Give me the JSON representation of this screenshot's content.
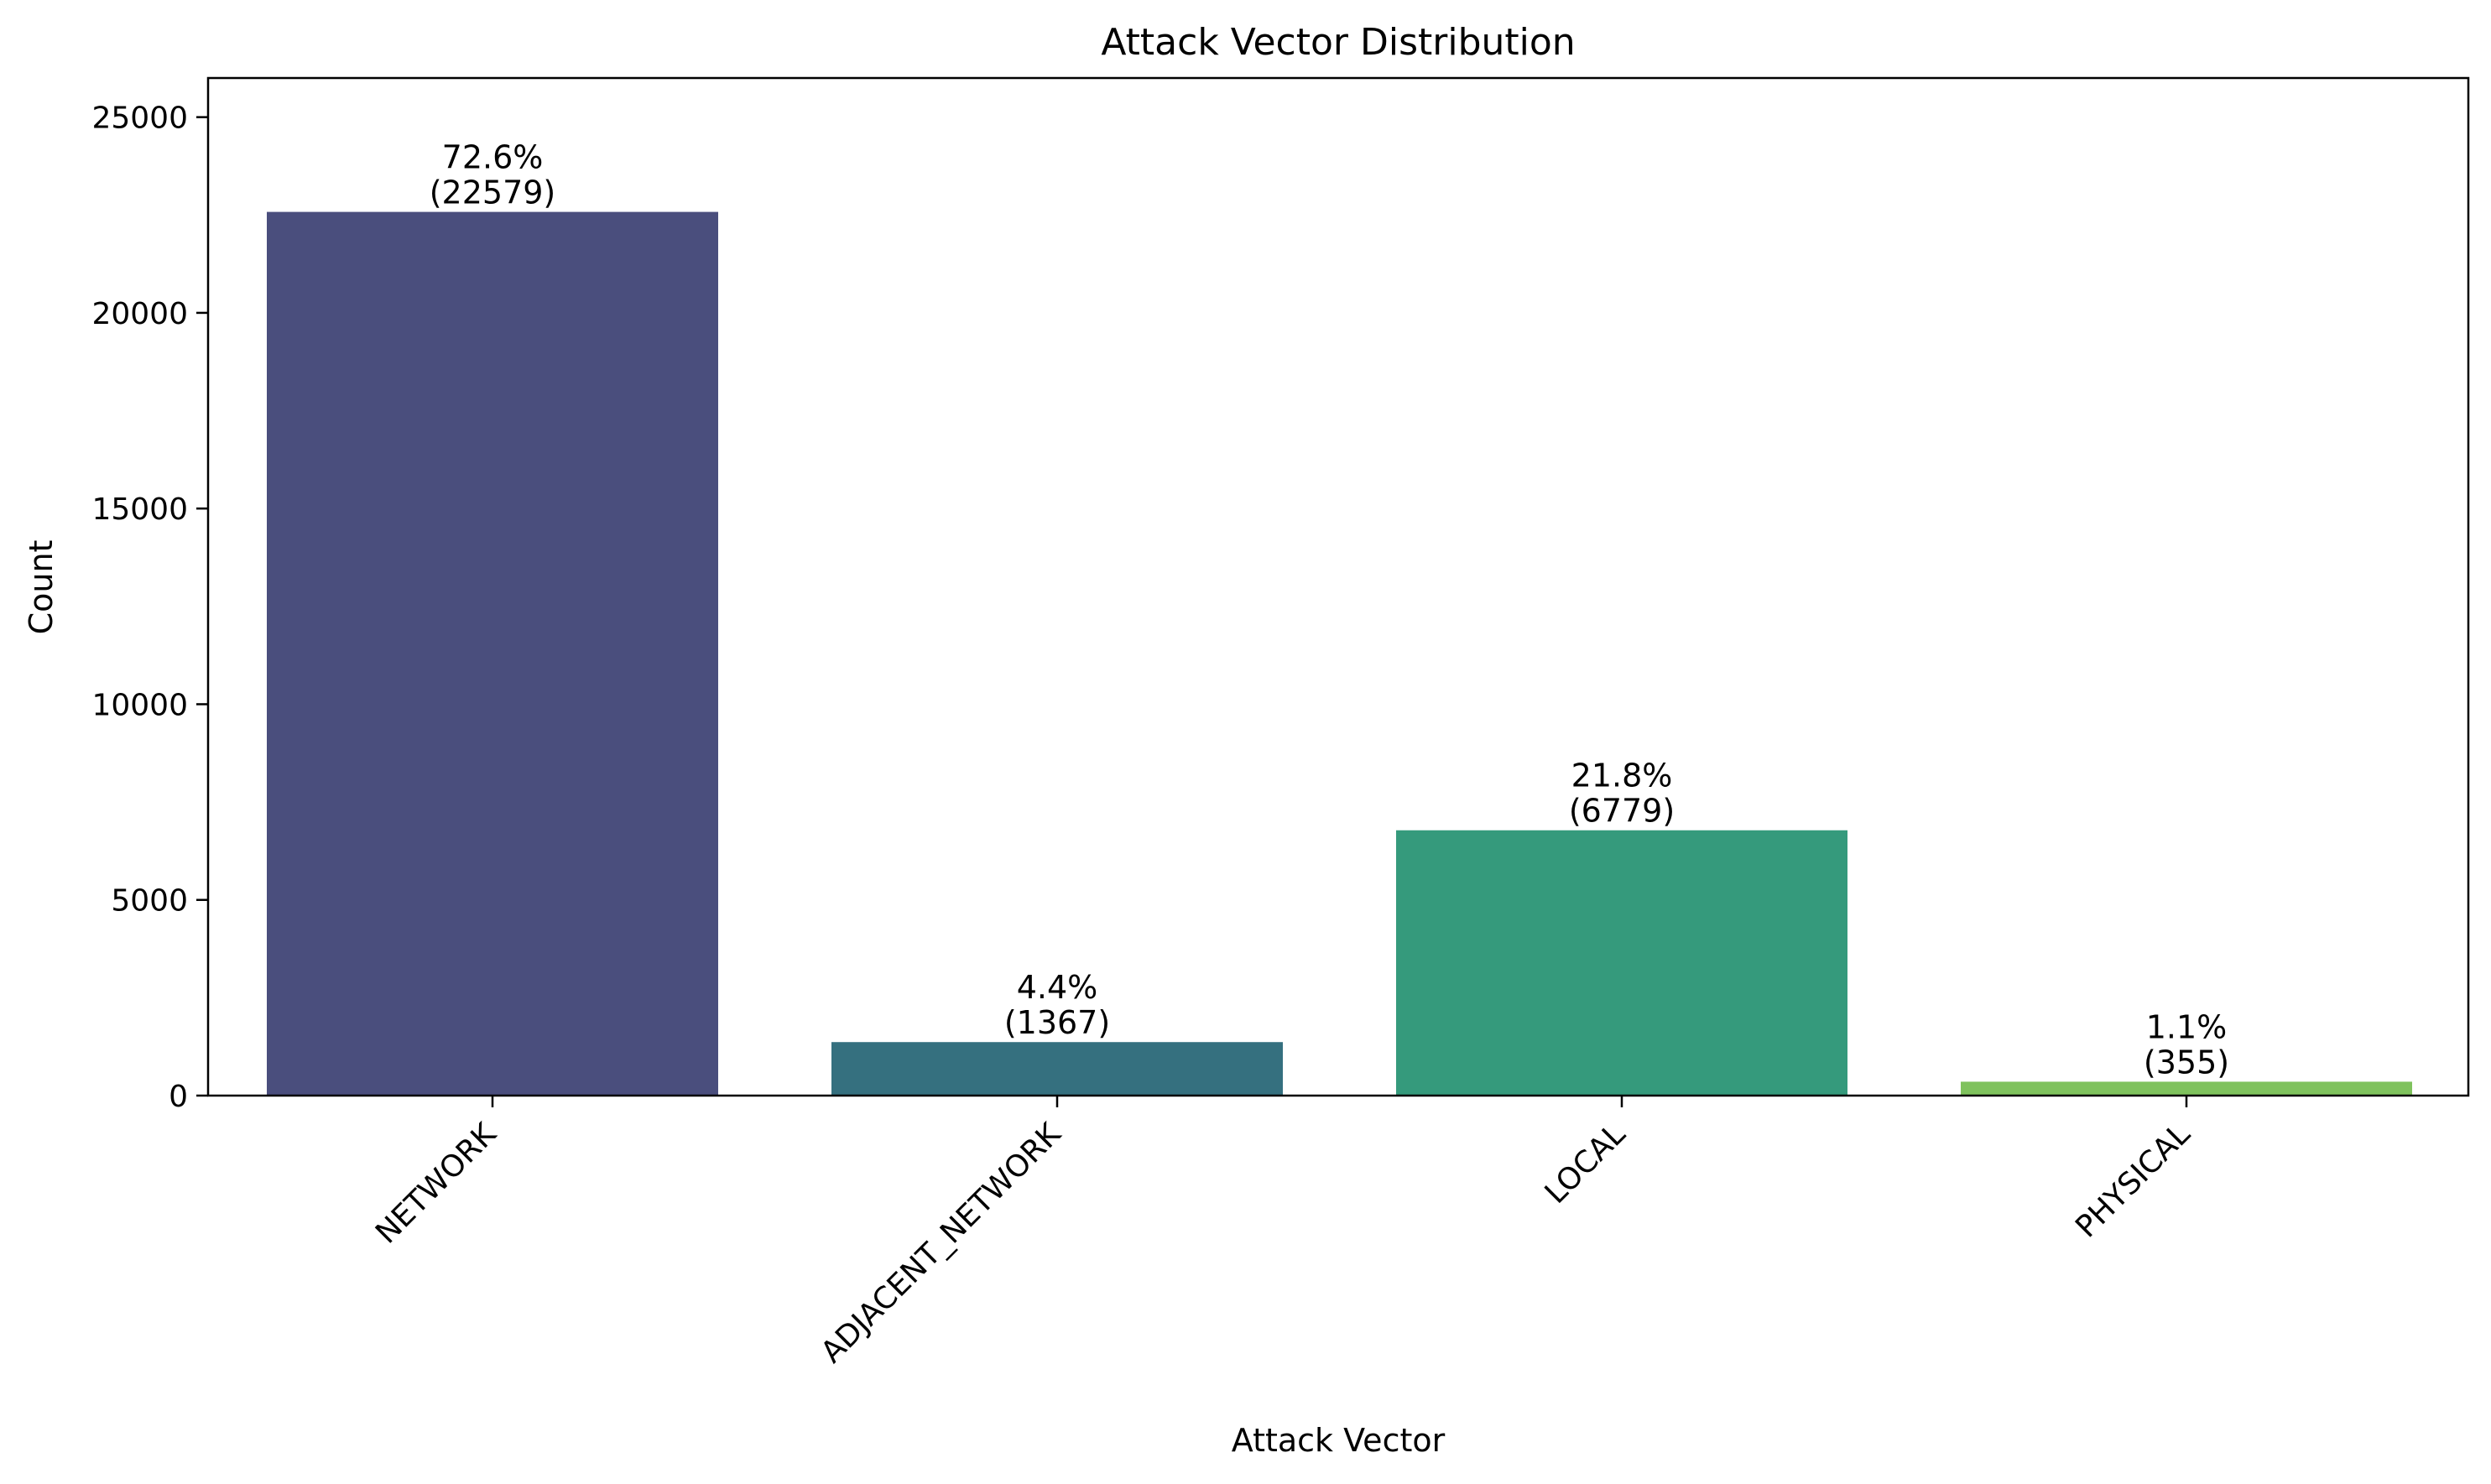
{
  "chart_data": {
    "type": "bar",
    "title": "Attack Vector Distribution",
    "xlabel": "Attack Vector",
    "ylabel": "Count",
    "categories": [
      "NETWORK",
      "ADJACENT_NETWORK",
      "LOCAL",
      "PHYSICAL"
    ],
    "values": [
      22579,
      1367,
      6779,
      355
    ],
    "percent_labels": [
      "72.6%",
      "4.4%",
      "21.8%",
      "1.1%"
    ],
    "count_labels": [
      "(22579)",
      "(1367)",
      "(6779)",
      "(355)"
    ],
    "colors": [
      "#4a4e7d",
      "#35707f",
      "#359a7c",
      "#7fc25d"
    ],
    "ylim": [
      0,
      26000
    ],
    "yticks": [
      0,
      5000,
      10000,
      15000,
      20000,
      25000
    ],
    "ytick_labels": [
      "0",
      "5000",
      "10000",
      "15000",
      "20000",
      "25000"
    ],
    "grid": false,
    "legend": "none"
  }
}
